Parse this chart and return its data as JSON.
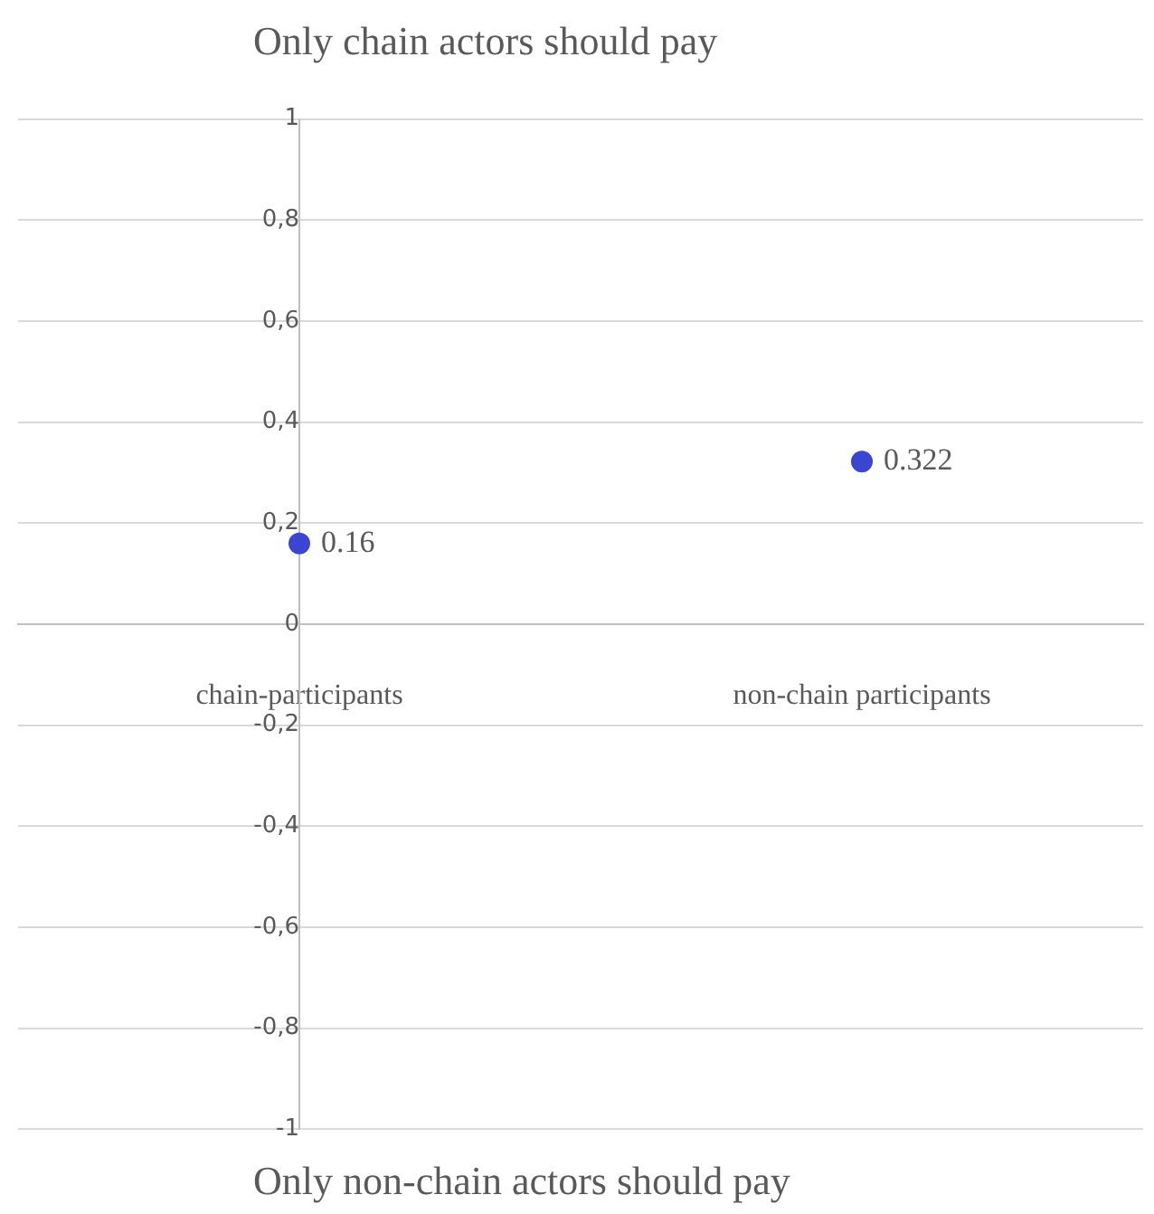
{
  "chart_data": {
    "type": "scatter",
    "title": "Only chain actors should pay",
    "xlabel": "Only non-chain actors should pay",
    "categories": [
      "chain-participants",
      "non-chain participants"
    ],
    "series": [
      {
        "color": "#3a46d1",
        "values": [
          0.16,
          0.322
        ]
      }
    ],
    "ylim": [
      -1,
      1
    ],
    "yticks": [
      -1,
      {
        "value": -0.8,
        "label": "-0,8"
      },
      {
        "value": -0.6,
        "label": "-0,6"
      },
      {
        "value": -0.4,
        "label": "-0,4"
      },
      {
        "value": -0.2,
        "label": "-0,2"
      },
      0,
      {
        "value": 0.2,
        "label": "0,2"
      },
      {
        "value": 0.4,
        "label": "0,4"
      },
      {
        "value": 0.6,
        "label": "0,6"
      },
      {
        "value": 0.8,
        "label": "0,8"
      },
      1
    ],
    "grid": "y",
    "legend": false,
    "marker": "circle",
    "data_labels": true
  }
}
